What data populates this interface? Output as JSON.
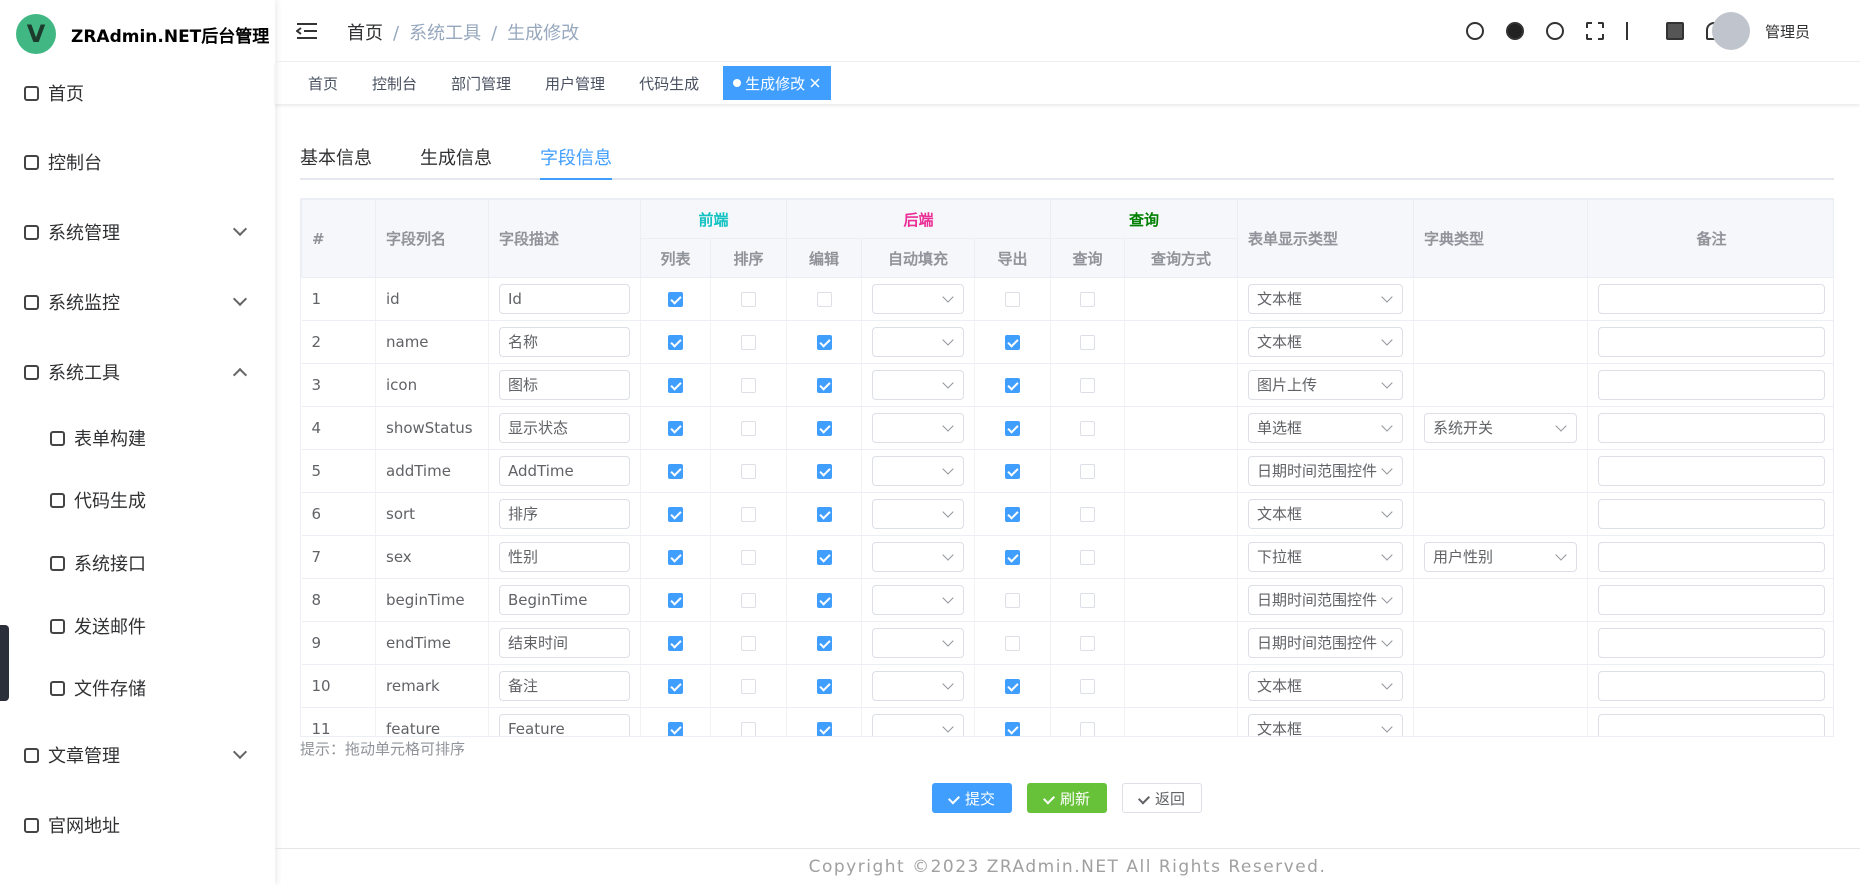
{
  "sidebar": {
    "logo": "V",
    "brand": "ZRAdmin.NET后台管理",
    "menu": [
      {
        "label": "首页"
      },
      {
        "label": "控制台"
      },
      {
        "label": "系统管理",
        "arrow": "down"
      },
      {
        "label": "系统监控",
        "arrow": "down"
      },
      {
        "label": "系统工具",
        "arrow": "up"
      },
      {
        "label": "表单构建",
        "sub": true
      },
      {
        "label": "代码生成",
        "sub": true
      },
      {
        "label": "系统接口",
        "sub": true
      },
      {
        "label": "发送邮件",
        "sub": true
      },
      {
        "label": "文件存储",
        "sub": true
      },
      {
        "label": "文章管理",
        "arrow": "down"
      },
      {
        "label": "官网地址"
      }
    ]
  },
  "header": {
    "breadcrumb": [
      "首页",
      "系统工具",
      "生成修改"
    ],
    "separator": "/",
    "user": "管理员"
  },
  "tabs": [
    "首页",
    "控制台",
    "部门管理",
    "用户管理",
    "代码生成",
    "生成修改"
  ],
  "subtabs": [
    "基本信息",
    "生成信息",
    "字段信息"
  ],
  "table": {
    "lead_columns": [
      "#",
      "字段列名",
      "字段描述"
    ],
    "groups": [
      {
        "label": "前端",
        "color": "#13c2c2",
        "columns": [
          "列表",
          "排序"
        ]
      },
      {
        "label": "后端",
        "color": "#eb2f96",
        "columns": [
          "编辑",
          "自动填充",
          "导出"
        ]
      },
      {
        "label": "查询",
        "color": "#008000",
        "columns": [
          "查询",
          "查询方式"
        ]
      }
    ],
    "tail_columns": [
      "表单显示类型",
      "字典类型",
      "备注"
    ],
    "rows": [
      {
        "no": 1,
        "name": "id",
        "desc": "Id",
        "list": true,
        "sort": false,
        "edit": false,
        "export": false,
        "query": false,
        "html_type": "文本框"
      },
      {
        "no": 2,
        "name": "name",
        "desc": "名称",
        "list": true,
        "sort": false,
        "edit": true,
        "export": true,
        "query": false,
        "html_type": "文本框"
      },
      {
        "no": 3,
        "name": "icon",
        "desc": "图标",
        "list": true,
        "sort": false,
        "edit": true,
        "export": true,
        "query": false,
        "html_type": "图片上传"
      },
      {
        "no": 4,
        "name": "showStatus",
        "desc": "显示状态",
        "list": true,
        "sort": false,
        "edit": true,
        "export": true,
        "query": false,
        "html_type": "单选框",
        "dict": "系统开关"
      },
      {
        "no": 5,
        "name": "addTime",
        "desc": "AddTime",
        "list": true,
        "sort": false,
        "edit": true,
        "export": true,
        "query": false,
        "html_type": "日期时间范围控件"
      },
      {
        "no": 6,
        "name": "sort",
        "desc": "排序",
        "list": true,
        "sort": false,
        "edit": true,
        "export": true,
        "query": false,
        "html_type": "文本框"
      },
      {
        "no": 7,
        "name": "sex",
        "desc": "性别",
        "list": true,
        "sort": false,
        "edit": true,
        "export": true,
        "query": false,
        "html_type": "下拉框",
        "dict": "用户性别"
      },
      {
        "no": 8,
        "name": "beginTime",
        "desc": "BeginTime",
        "list": true,
        "sort": false,
        "edit": true,
        "export": false,
        "query": false,
        "html_type": "日期时间范围控件"
      },
      {
        "no": 9,
        "name": "endTime",
        "desc": "结束时间",
        "list": true,
        "sort": false,
        "edit": true,
        "export": false,
        "query": false,
        "html_type": "日期时间范围控件"
      },
      {
        "no": 10,
        "name": "remark",
        "desc": "备注",
        "list": true,
        "sort": false,
        "edit": true,
        "export": true,
        "query": false,
        "html_type": "文本框"
      },
      {
        "no": 11,
        "name": "feature",
        "desc": "Feature",
        "list": true,
        "sort": false,
        "edit": true,
        "export": true,
        "query": false,
        "html_type": "文本框"
      }
    ]
  },
  "hint": "提示：拖动单元格可排序",
  "buttons": [
    "提交",
    "刷新",
    "返回"
  ],
  "copyright": "Copyright ©2023 ZRAdmin.NET All Rights Reserved."
}
